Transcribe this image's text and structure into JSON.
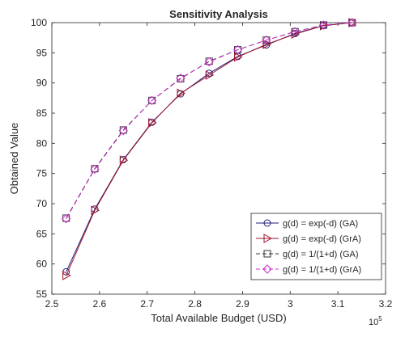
{
  "chart_data": {
    "type": "line",
    "title": "Sensitivity Analysis",
    "xlabel": "Total Available Budget (USD)",
    "ylabel": "Obtained Value",
    "x_multiplier_base": "10",
    "x_multiplier_exp": "5",
    "xlim": [
      2.5,
      3.2
    ],
    "ylim": [
      55,
      100
    ],
    "x_ticks": [
      2.5,
      2.6,
      2.7,
      2.8,
      2.9,
      3.0,
      3.1,
      3.2
    ],
    "x_tick_labels": [
      "2.5",
      "2.6",
      "2.7",
      "2.8",
      "2.9",
      "3",
      "3.1",
      "3.2"
    ],
    "y_ticks": [
      55,
      60,
      65,
      70,
      75,
      80,
      85,
      90,
      95,
      100
    ],
    "y_tick_labels": [
      "55",
      "60",
      "65",
      "70",
      "75",
      "80",
      "85",
      "90",
      "95",
      "100"
    ],
    "grid": false,
    "legend_position": "bottom-right",
    "x": [
      2.53,
      2.59,
      2.65,
      2.71,
      2.77,
      2.83,
      2.89,
      2.95,
      3.01,
      3.07,
      3.13
    ],
    "series": [
      {
        "name": "g(d) = exp(-d) (GA)",
        "color": "#1f1f7a",
        "marker": "circle",
        "dash": "solid",
        "values": [
          58.7,
          69.1,
          77.3,
          83.5,
          88.2,
          91.6,
          94.4,
          96.3,
          98.2,
          99.5,
          100.0
        ]
      },
      {
        "name": "g(d) = exp(-d) (GrA)",
        "color": "#a2142f",
        "marker": "triangle-right",
        "dash": "solid",
        "values": [
          58.1,
          68.9,
          77.2,
          83.4,
          88.3,
          91.3,
          94.3,
          96.4,
          98.1,
          99.5,
          100.0
        ]
      },
      {
        "name": "g(d) = 1/(1+d) (GA)",
        "color": "#333333",
        "marker": "square",
        "dash": "dashed",
        "values": [
          67.6,
          75.8,
          82.2,
          87.1,
          90.7,
          93.6,
          95.5,
          97.1,
          98.5,
          99.6,
          100.0
        ]
      },
      {
        "name": "g(d) = 1/(1+d) (GrA)",
        "color": "#cc33cc",
        "marker": "diamond",
        "dash": "dashed",
        "values": [
          67.5,
          75.7,
          82.1,
          87.1,
          90.8,
          93.5,
          95.5,
          97.1,
          98.5,
          99.6,
          100.0
        ]
      }
    ]
  }
}
